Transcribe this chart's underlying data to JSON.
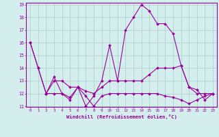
{
  "xlabel": "Windchill (Refroidissement éolien,°C)",
  "x": [
    0,
    1,
    2,
    3,
    4,
    5,
    6,
    7,
    8,
    9,
    10,
    11,
    12,
    13,
    14,
    15,
    16,
    17,
    18,
    19,
    20,
    21,
    22,
    23
  ],
  "line_jagged": [
    16,
    14,
    12,
    13.3,
    12,
    11.5,
    12.5,
    11,
    11.8,
    13,
    15.8,
    13,
    17,
    18,
    19,
    18.5,
    17.5,
    17.5,
    16.7,
    14.2,
    12.5,
    12.3,
    11.5,
    12
  ],
  "line_upper": [
    16,
    14,
    12,
    13,
    13,
    12.5,
    12.5,
    12.2,
    12,
    12.5,
    13,
    13,
    13,
    13,
    13,
    13.5,
    14,
    14,
    14,
    14.2,
    12.5,
    12,
    12,
    12
  ],
  "line_lower": [
    null,
    null,
    12,
    12,
    12,
    11.7,
    12.5,
    11.8,
    11,
    11.8,
    12,
    12,
    12,
    12,
    12,
    12,
    12,
    11.8,
    11.7,
    11.5,
    11.2,
    11.5,
    11.8,
    12
  ],
  "bg_color": "#d4eded",
  "line_color": "#990099",
  "grid_color": "#aacccc",
  "ylim": [
    11,
    19
  ],
  "xlim_min": -0.5,
  "xlim_max": 23.5,
  "yticks": [
    11,
    12,
    13,
    14,
    15,
    16,
    17,
    18,
    19
  ]
}
